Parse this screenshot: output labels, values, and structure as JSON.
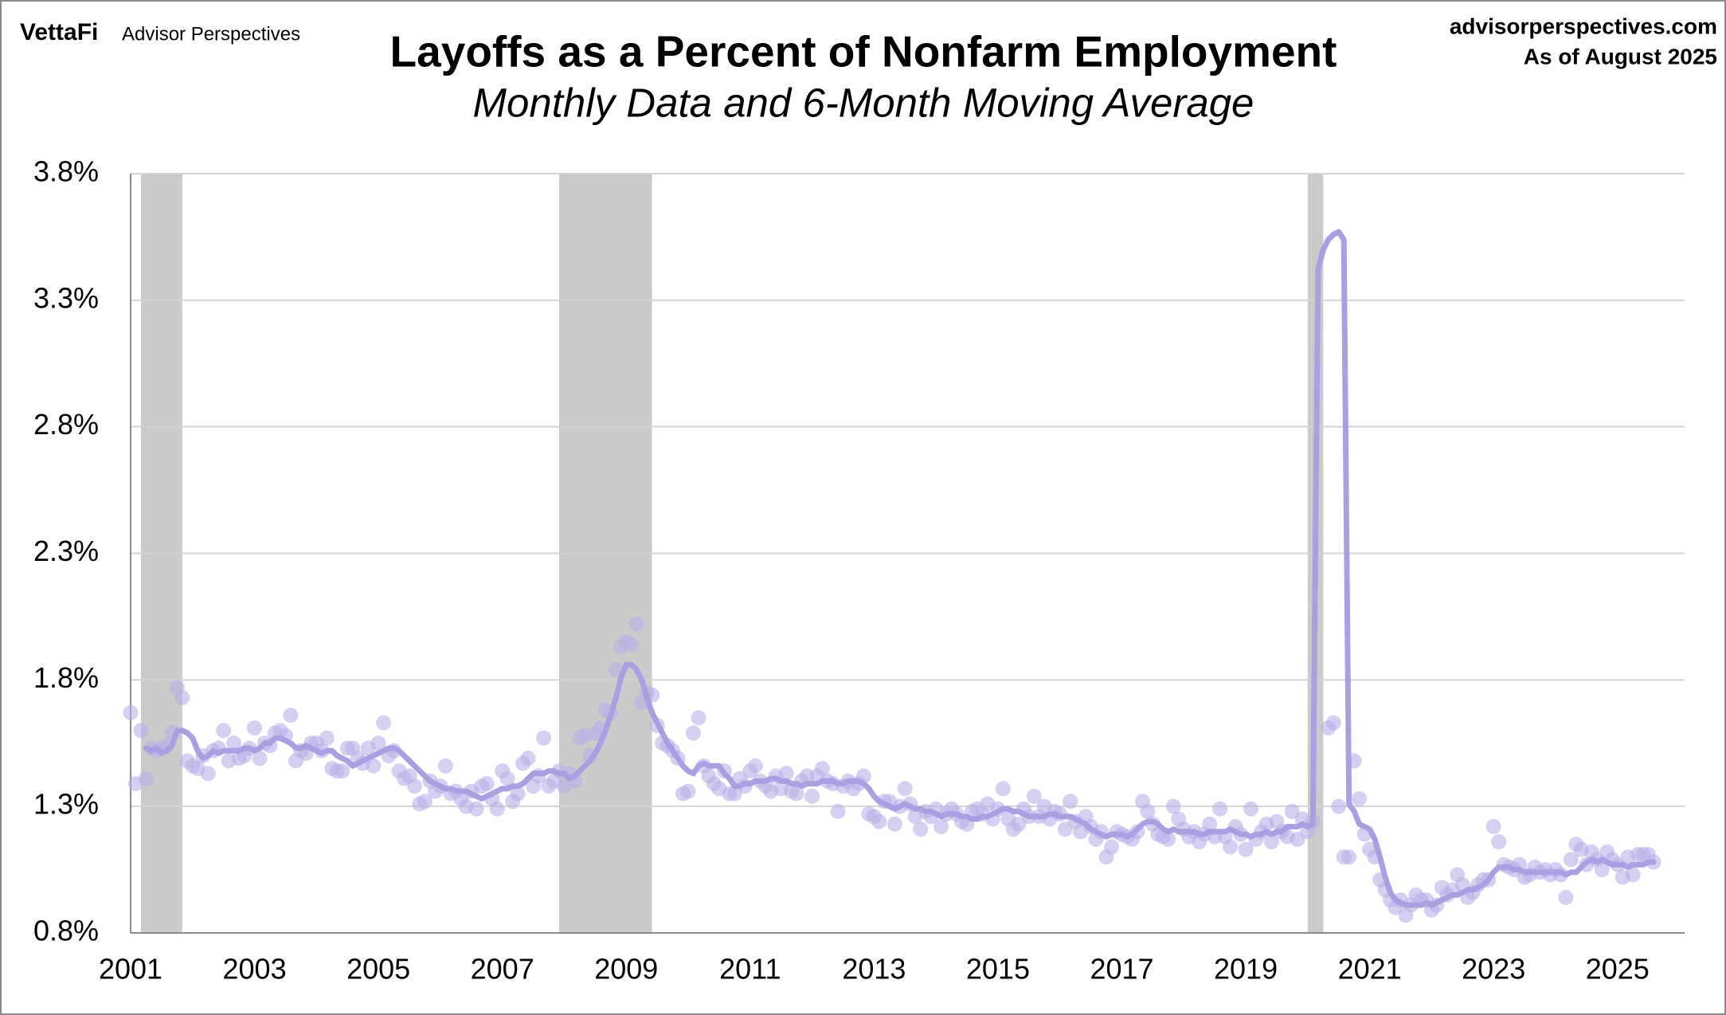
{
  "chart_data": {
    "type": "line",
    "brand": "VettaFi",
    "brand_sub": "Advisor Perspectives",
    "source": "advisorperspectives.com",
    "as_of": "As of August 2025",
    "title": "Layoffs as a Percent of Nonfarm Employment",
    "subtitle": "Monthly Data and 6-Month Moving Average",
    "ylim": [
      0.8,
      3.8
    ],
    "yticks": [
      {
        "value": 0.8,
        "label": "0.8%"
      },
      {
        "value": 1.3,
        "label": "1.3%"
      },
      {
        "value": 1.8,
        "label": "1.8%"
      },
      {
        "value": 2.3,
        "label": "2.3%"
      },
      {
        "value": 2.8,
        "label": "2.8%"
      },
      {
        "value": 3.3,
        "label": "3.3%"
      },
      {
        "value": 3.8,
        "label": "3.8%"
      }
    ],
    "grid": true,
    "recession_color": "#cbcbcb",
    "recessions": [
      {
        "start": 2,
        "end": 10
      },
      {
        "start": 83,
        "end": 101
      },
      {
        "start": 228,
        "end": 231
      }
    ],
    "categories": [
      "2001",
      null,
      null,
      null,
      null,
      null,
      null,
      null,
      null,
      null,
      null,
      null,
      null,
      null,
      null,
      null,
      null,
      null,
      null,
      null,
      null,
      null,
      null,
      null,
      "2003",
      null,
      null,
      null,
      null,
      null,
      null,
      null,
      null,
      null,
      null,
      null,
      null,
      null,
      null,
      null,
      null,
      null,
      null,
      null,
      null,
      null,
      null,
      null,
      "2005",
      null,
      null,
      null,
      null,
      null,
      null,
      null,
      null,
      null,
      null,
      null,
      null,
      null,
      null,
      null,
      null,
      null,
      null,
      null,
      null,
      null,
      null,
      null,
      "2007",
      null,
      null,
      null,
      null,
      null,
      null,
      null,
      null,
      null,
      null,
      null,
      null,
      null,
      null,
      null,
      null,
      null,
      null,
      null,
      null,
      null,
      null,
      null,
      "2009",
      null,
      null,
      null,
      null,
      null,
      null,
      null,
      null,
      null,
      null,
      null,
      null,
      null,
      null,
      null,
      null,
      null,
      null,
      null,
      null,
      null,
      null,
      null,
      "2011",
      null,
      null,
      null,
      null,
      null,
      null,
      null,
      null,
      null,
      null,
      null,
      null,
      null,
      null,
      null,
      null,
      null,
      null,
      null,
      null,
      null,
      null,
      null,
      "2013",
      null,
      null,
      null,
      null,
      null,
      null,
      null,
      null,
      null,
      null,
      null,
      null,
      null,
      null,
      null,
      null,
      null,
      null,
      null,
      null,
      null,
      null,
      null,
      "2015",
      null,
      null,
      null,
      null,
      null,
      null,
      null,
      null,
      null,
      null,
      null,
      null,
      null,
      null,
      null,
      null,
      null,
      null,
      null,
      null,
      null,
      null,
      null,
      "2017",
      null,
      null,
      null,
      null,
      null,
      null,
      null,
      null,
      null,
      null,
      null,
      null,
      null,
      null,
      null,
      null,
      null,
      null,
      null,
      null,
      null,
      null,
      null,
      "2019",
      null,
      null,
      null,
      null,
      null,
      null,
      null,
      null,
      null,
      null,
      null,
      null,
      null,
      null,
      null,
      null,
      null,
      null,
      null,
      null,
      null,
      null,
      null,
      "2021",
      null,
      null,
      null,
      null,
      null,
      null,
      null,
      null,
      null,
      null,
      null,
      null,
      null,
      null,
      null,
      null,
      null,
      null,
      null,
      null,
      null,
      null,
      null,
      "2023",
      null,
      null,
      null,
      null,
      null,
      null,
      null,
      null,
      null,
      null,
      null,
      null,
      null,
      null,
      null,
      null,
      null,
      null,
      null,
      null,
      null,
      null,
      null,
      "2025",
      null,
      null,
      null,
      null,
      null,
      null,
      null
    ],
    "series": [
      {
        "type": "scatter",
        "color": "#b9b1e8",
        "values": [
          1.67,
          1.39,
          1.6,
          1.41,
          1.53,
          1.52,
          1.53,
          1.54,
          1.59,
          1.77,
          1.73,
          1.48,
          1.46,
          1.45,
          1.5,
          1.43,
          1.52,
          1.53,
          1.6,
          1.48,
          1.55,
          1.49,
          1.5,
          1.53,
          1.61,
          1.49,
          1.55,
          1.54,
          1.59,
          1.6,
          1.58,
          1.66,
          1.48,
          1.52,
          1.51,
          1.55,
          1.55,
          1.52,
          1.57,
          1.45,
          1.44,
          1.44,
          1.53,
          1.53,
          1.49,
          1.47,
          1.53,
          1.46,
          1.55,
          1.63,
          1.5,
          1.52,
          1.44,
          1.41,
          1.42,
          1.38,
          1.31,
          1.32,
          1.4,
          1.36,
          1.38,
          1.46,
          1.35,
          1.36,
          1.33,
          1.3,
          1.36,
          1.29,
          1.38,
          1.39,
          1.33,
          1.29,
          1.44,
          1.41,
          1.32,
          1.35,
          1.47,
          1.49,
          1.38,
          1.42,
          1.57,
          1.38,
          1.4,
          1.44,
          1.38,
          1.43,
          1.4,
          1.57,
          1.58,
          1.5,
          1.59,
          1.61,
          1.68,
          1.67,
          1.84,
          1.93,
          1.95,
          1.94,
          2.02,
          1.71,
          1.75,
          1.74,
          1.62,
          1.55,
          1.54,
          1.52,
          1.49,
          1.35,
          1.36,
          1.59,
          1.65,
          1.46,
          1.42,
          1.39,
          1.37,
          1.44,
          1.35,
          1.35,
          1.41,
          1.38,
          1.44,
          1.46,
          1.4,
          1.38,
          1.36,
          1.42,
          1.37,
          1.43,
          1.36,
          1.35,
          1.4,
          1.42,
          1.34,
          1.42,
          1.45,
          1.4,
          1.39,
          1.28,
          1.38,
          1.4,
          1.37,
          1.39,
          1.42,
          1.27,
          1.26,
          1.24,
          1.32,
          1.32,
          1.23,
          1.3,
          1.37,
          1.31,
          1.26,
          1.21,
          1.28,
          1.26,
          1.29,
          1.22,
          1.27,
          1.29,
          1.27,
          1.24,
          1.23,
          1.28,
          1.29,
          1.27,
          1.31,
          1.25,
          1.29,
          1.37,
          1.25,
          1.21,
          1.23,
          1.29,
          1.26,
          1.34,
          1.26,
          1.3,
          1.25,
          1.28,
          1.27,
          1.21,
          1.32,
          1.24,
          1.2,
          1.26,
          1.22,
          1.17,
          1.2,
          1.1,
          1.14,
          1.2,
          1.19,
          1.18,
          1.17,
          1.2,
          1.32,
          1.28,
          1.23,
          1.19,
          1.18,
          1.17,
          1.3,
          1.25,
          1.21,
          1.18,
          1.2,
          1.16,
          1.19,
          1.23,
          1.18,
          1.29,
          1.18,
          1.14,
          1.22,
          1.19,
          1.13,
          1.29,
          1.17,
          1.2,
          1.23,
          1.16,
          1.24,
          1.2,
          1.18,
          1.28,
          1.17,
          1.25,
          1.2,
          1.24,
          null,
          null,
          1.61,
          1.63,
          1.3,
          1.1,
          1.1,
          1.48,
          1.33,
          1.19,
          1.13,
          1.1,
          1.01,
          0.97,
          0.93,
          0.9,
          0.93,
          0.87,
          0.91,
          0.95,
          0.93,
          0.93,
          0.89,
          0.91,
          0.98,
          0.95,
          0.97,
          1.03,
          0.99,
          0.94,
          0.96,
          0.99,
          1.01,
          1.01,
          1.22,
          1.16,
          1.07,
          1.06,
          1.05,
          1.07,
          1.02,
          1.03,
          1.06,
          1.04,
          1.05,
          1.03,
          1.05,
          1.03,
          0.94,
          1.09,
          1.15,
          1.13,
          1.07,
          1.12,
          1.09,
          1.05,
          1.12,
          1.09,
          1.07,
          1.02,
          1.1,
          1.03,
          1.11,
          1.11,
          1.11,
          1.08
        ]
      },
      {
        "type": "line",
        "color": "#ab9fe2",
        "values": [
          null,
          null,
          null,
          1.53,
          1.52,
          1.53,
          1.51,
          1.52,
          1.54,
          1.6,
          1.6,
          1.59,
          1.57,
          1.52,
          1.49,
          1.5,
          1.52,
          1.51,
          1.52,
          1.52,
          1.52,
          1.52,
          1.53,
          1.53,
          1.52,
          1.53,
          1.55,
          1.55,
          1.57,
          1.57,
          1.56,
          1.55,
          1.53,
          1.53,
          1.54,
          1.53,
          1.52,
          1.51,
          1.52,
          1.52,
          1.5,
          1.49,
          1.48,
          1.46,
          1.47,
          1.48,
          1.49,
          1.5,
          1.51,
          1.52,
          1.53,
          1.53,
          1.52,
          1.5,
          1.48,
          1.46,
          1.44,
          1.42,
          1.4,
          1.39,
          1.38,
          1.37,
          1.37,
          1.36,
          1.36,
          1.36,
          1.35,
          1.34,
          1.33,
          1.34,
          1.35,
          1.36,
          1.37,
          1.37,
          1.38,
          1.38,
          1.39,
          1.41,
          1.43,
          1.43,
          1.43,
          1.44,
          1.44,
          1.43,
          1.43,
          1.41,
          1.42,
          1.44,
          1.46,
          1.48,
          1.51,
          1.55,
          1.6,
          1.66,
          1.73,
          1.81,
          1.86,
          1.86,
          1.84,
          1.8,
          1.73,
          1.67,
          1.63,
          1.59,
          1.55,
          1.52,
          1.49,
          1.46,
          1.44,
          1.43,
          1.46,
          1.47,
          1.46,
          1.46,
          1.46,
          1.43,
          1.41,
          1.38,
          1.38,
          1.39,
          1.39,
          1.4,
          1.4,
          1.4,
          1.41,
          1.41,
          1.4,
          1.4,
          1.39,
          1.39,
          1.38,
          1.39,
          1.39,
          1.39,
          1.4,
          1.4,
          1.4,
          1.39,
          1.39,
          1.4,
          1.4,
          1.4,
          1.39,
          1.37,
          1.34,
          1.32,
          1.31,
          1.3,
          1.29,
          1.3,
          1.31,
          1.3,
          1.29,
          1.29,
          1.28,
          1.28,
          1.27,
          1.26,
          1.27,
          1.27,
          1.27,
          1.26,
          1.26,
          1.25,
          1.25,
          1.26,
          1.26,
          1.27,
          1.28,
          1.29,
          1.29,
          1.28,
          1.28,
          1.27,
          1.26,
          1.26,
          1.26,
          1.26,
          1.27,
          1.27,
          1.26,
          1.26,
          1.26,
          1.25,
          1.24,
          1.23,
          1.21,
          1.2,
          1.19,
          1.18,
          1.19,
          1.19,
          1.19,
          1.18,
          1.19,
          1.21,
          1.23,
          1.24,
          1.24,
          1.23,
          1.21,
          1.2,
          1.21,
          1.2,
          1.2,
          1.2,
          1.2,
          1.19,
          1.19,
          1.2,
          1.2,
          1.2,
          1.2,
          1.21,
          1.2,
          1.19,
          1.19,
          1.18,
          1.19,
          1.19,
          1.2,
          1.19,
          1.2,
          1.2,
          1.22,
          1.22,
          1.22,
          1.23,
          1.22,
          1.23,
          3.42,
          3.5,
          3.54,
          3.56,
          3.57,
          3.54,
          1.31,
          1.28,
          1.23,
          1.22,
          1.21,
          1.17,
          1.1,
          1.02,
          0.96,
          0.93,
          0.92,
          0.91,
          0.91,
          0.91,
          0.91,
          0.92,
          0.91,
          0.92,
          0.93,
          0.94,
          0.95,
          0.95,
          0.96,
          0.97,
          0.97,
          0.98,
          0.99,
          1.01,
          1.04,
          1.06,
          1.06,
          1.06,
          1.05,
          1.05,
          1.04,
          1.04,
          1.04,
          1.04,
          1.04,
          1.04,
          1.04,
          1.04,
          1.03,
          1.04,
          1.04,
          1.06,
          1.08,
          1.09,
          1.08,
          1.09,
          1.08,
          1.07,
          1.07,
          1.07,
          1.06,
          1.07,
          1.07,
          1.07,
          1.08,
          1.08
        ]
      }
    ]
  }
}
